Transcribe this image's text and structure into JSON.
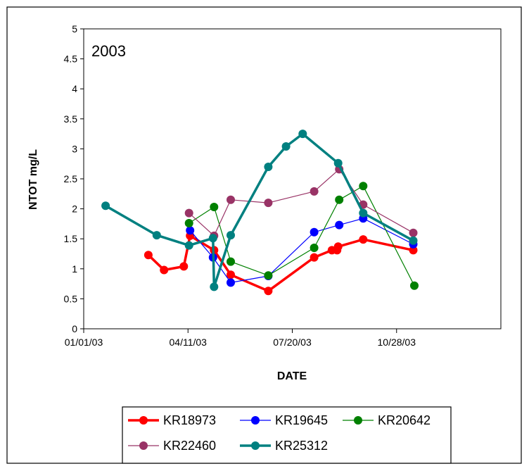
{
  "chart_data": {
    "type": "line",
    "annotation": "2003",
    "xlabel": "DATE",
    "ylabel": "NTOT mg/L",
    "x_ticks": [
      "01/01/03",
      "04/11/03",
      "07/20/03",
      "10/28/03"
    ],
    "xlim": [
      "2003-01-01",
      "2004-02-05"
    ],
    "ylim": [
      0,
      5
    ],
    "y_ticks": [
      "0",
      "0.5",
      "1",
      "1.5",
      "2",
      "2.5",
      "3",
      "3.5",
      "4",
      "4.5",
      "5"
    ],
    "grid": false,
    "legend_position": "bottom",
    "series": [
      {
        "name": "KR18973",
        "color": "#ff0000",
        "style": "thick",
        "x": [
          "2003-03-04",
          "2003-03-19",
          "2003-04-07",
          "2003-04-13",
          "2003-05-06",
          "2003-05-22",
          "2003-06-27",
          "2003-08-10",
          "2003-08-27",
          "2003-09-01",
          "2003-09-02",
          "2003-09-26",
          "2003-11-13"
        ],
        "y": [
          1.23,
          0.98,
          1.04,
          1.55,
          1.31,
          0.9,
          0.63,
          1.19,
          1.31,
          1.31,
          1.37,
          1.49,
          1.31
        ]
      },
      {
        "name": "KR19645",
        "color": "#0000ff",
        "style": "thin",
        "x": [
          "2003-04-13",
          "2003-05-05",
          "2003-05-22",
          "2003-06-27",
          "2003-08-10",
          "2003-09-03",
          "2003-09-26",
          "2003-11-13"
        ],
        "y": [
          1.64,
          1.19,
          0.77,
          0.88,
          1.61,
          1.73,
          1.84,
          1.41
        ]
      },
      {
        "name": "KR20642",
        "color": "#008000",
        "style": "thin",
        "x": [
          "2003-04-12",
          "2003-05-06",
          "2003-05-22",
          "2003-06-27",
          "2003-08-10",
          "2003-09-03",
          "2003-09-26",
          "2003-11-14"
        ],
        "y": [
          1.76,
          2.03,
          1.12,
          0.89,
          1.35,
          2.15,
          2.38,
          0.72
        ]
      },
      {
        "name": "KR22460",
        "color": "#993366",
        "style": "thin",
        "x": [
          "2003-04-12",
          "2003-05-06",
          "2003-05-22",
          "2003-06-27",
          "2003-08-10",
          "2003-09-03",
          "2003-09-26",
          "2003-11-13"
        ],
        "y": [
          1.93,
          1.55,
          2.15,
          2.1,
          2.29,
          2.66,
          2.07,
          1.6
        ]
      },
      {
        "name": "KR25312",
        "color": "#008080",
        "style": "thick",
        "x": [
          "2003-01-22",
          "2003-03-12",
          "2003-04-12",
          "2003-05-05",
          "2003-05-06",
          "2003-05-22",
          "2003-06-27",
          "2003-07-14",
          "2003-07-30",
          "2003-09-02",
          "2003-09-26",
          "2003-11-13"
        ],
        "y": [
          2.05,
          1.56,
          1.39,
          1.51,
          0.7,
          1.56,
          2.7,
          3.04,
          3.25,
          2.76,
          1.93,
          1.47
        ]
      }
    ]
  }
}
